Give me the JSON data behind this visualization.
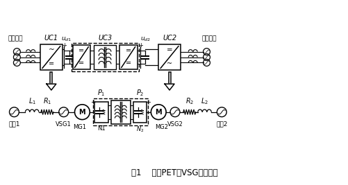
{
  "title_bottom": "图1    传统PET的VSG控制模型",
  "label_top_left": "高压电网",
  "label_top_right": "低压电网",
  "label_uc1": "UC1",
  "label_uc2": "UC2",
  "label_uc3": "UC3",
  "label_ud1": "$u_{d1}$",
  "label_ud2": "$u_{d2}$",
  "label_p1": "$P_1$",
  "label_p2": "$P_2$",
  "label_mg1": "MG1",
  "label_mg2": "MG2",
  "label_n1": "N1",
  "label_n2": "$N_2$",
  "label_vsg1": "VSG1",
  "label_vsg2": "VSG2",
  "label_l1": "$L_1$",
  "label_r1": "$R_1$",
  "label_l2": "$L_2$",
  "label_r2": "$R_2$",
  "label_grid1": "电网1",
  "label_grid2": "电网2",
  "bg_color": "#ffffff",
  "line_color": "#000000"
}
